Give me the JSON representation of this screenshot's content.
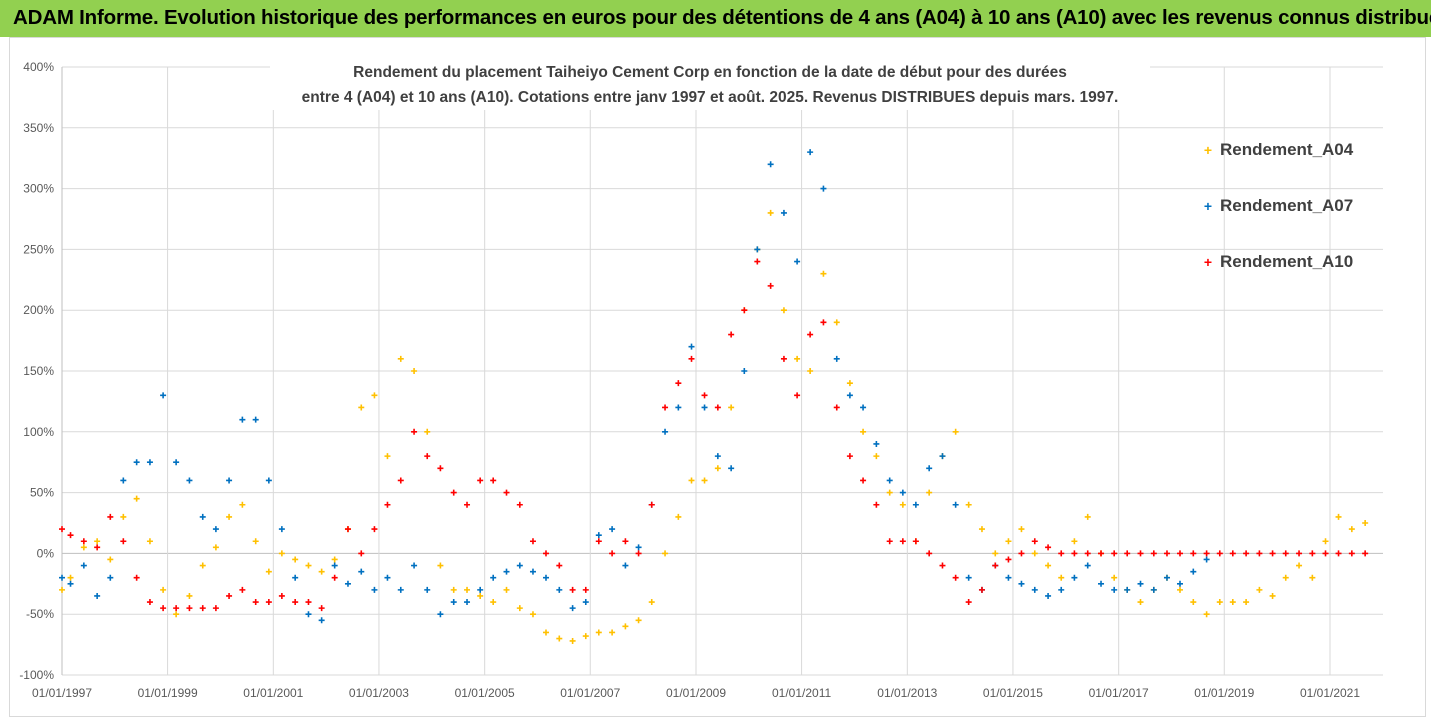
{
  "header": {
    "title": "ADAM Informe. Evolution historique des performances en euros pour des détentions de 4 ans (A04) à 10 ans (A10) avec les revenus connus distribués"
  },
  "chart_data": {
    "type": "scatter",
    "title_lines": [
      "Rendement du placement Taiheiyo Cement Corp en fonction de la date de début pour des durées",
      "entre 4 (A04) et 10 ans (A10). Cotations entre janv 1997 et août. 2025. Revenus DISTRIBUES depuis mars. 1997."
    ],
    "xlabel": "",
    "ylabel": "",
    "x_ticks": [
      "01/01/1997",
      "01/01/1999",
      "01/01/2001",
      "01/01/2003",
      "01/01/2005",
      "01/01/2007",
      "01/01/2009",
      "01/01/2011",
      "01/01/2013",
      "01/01/2015",
      "01/01/2017",
      "01/01/2019",
      "01/01/2021"
    ],
    "y_ticks": [
      "-100%",
      "-50%",
      "0%",
      "50%",
      "100%",
      "150%",
      "200%",
      "250%",
      "300%",
      "350%",
      "400%"
    ],
    "xlim": [
      "1997-01-01",
      "2021-09-15"
    ],
    "ylim": [
      -100,
      400
    ],
    "grid": true,
    "marker": "+",
    "legend_position": "right",
    "colors": {
      "Rendement_A04": "#ffc000",
      "Rendement_A07": "#0070c0",
      "Rendement_A10": "#ff0000"
    },
    "series": [
      {
        "name": "Rendement_A04",
        "x": [
          "1997-01-01",
          "1997-03-01",
          "1997-06-01",
          "1997-09-01",
          "1997-12-01",
          "1998-03-01",
          "1998-06-01",
          "1998-09-01",
          "1998-12-01",
          "1999-03-01",
          "1999-06-01",
          "1999-09-01",
          "1999-12-01",
          "2000-03-01",
          "2000-06-01",
          "2000-09-01",
          "2000-12-01",
          "2001-03-01",
          "2001-06-01",
          "2001-09-01",
          "2001-12-01",
          "2002-03-01",
          "2002-06-01",
          "2002-09-01",
          "2002-12-01",
          "2003-03-01",
          "2003-06-01",
          "2003-09-01",
          "2003-12-01",
          "2004-03-01",
          "2004-06-01",
          "2004-09-01",
          "2004-12-01",
          "2005-03-01",
          "2005-06-01",
          "2005-09-01",
          "2005-12-01",
          "2006-03-01",
          "2006-06-01",
          "2006-09-01",
          "2006-12-01",
          "2007-03-01",
          "2007-06-01",
          "2007-09-01",
          "2007-12-01",
          "2008-03-01",
          "2008-06-01",
          "2008-09-01",
          "2008-12-01",
          "2009-03-01",
          "2009-06-01",
          "2009-09-01",
          "2009-12-01",
          "2010-03-01",
          "2010-06-01",
          "2010-09-01",
          "2010-12-01",
          "2011-03-01",
          "2011-06-01",
          "2011-09-01",
          "2011-12-01",
          "2012-03-01",
          "2012-06-01",
          "2012-09-01",
          "2012-12-01",
          "2013-03-01",
          "2013-06-01",
          "2013-09-01",
          "2013-12-01",
          "2014-03-01",
          "2014-06-01",
          "2014-09-01",
          "2014-12-01",
          "2015-03-01",
          "2015-06-01",
          "2015-09-01",
          "2015-12-01",
          "2016-03-01",
          "2016-06-01",
          "2016-09-01",
          "2016-12-01",
          "2017-03-01",
          "2017-06-01",
          "2017-09-01",
          "2017-12-01",
          "2018-03-01",
          "2018-06-01",
          "2018-09-01",
          "2018-12-01",
          "2019-03-01",
          "2019-06-01",
          "2019-09-01",
          "2019-12-01",
          "2020-03-01",
          "2020-06-01",
          "2020-09-01",
          "2020-12-01",
          "2021-03-01",
          "2021-06-01",
          "2021-09-01"
        ],
        "y": [
          -30,
          -20,
          5,
          10,
          -5,
          30,
          45,
          10,
          -30,
          -50,
          -35,
          -10,
          5,
          30,
          40,
          10,
          -15,
          0,
          -5,
          -10,
          -15,
          -5,
          20,
          120,
          130,
          80,
          160,
          150,
          100,
          -10,
          -30,
          -30,
          -35,
          -40,
          -30,
          -45,
          -50,
          -65,
          -70,
          -72,
          -68,
          -65,
          -65,
          -60,
          -55,
          -40,
          0,
          30,
          60,
          60,
          70,
          120,
          200,
          250,
          280,
          200,
          160,
          150,
          230,
          190,
          140,
          100,
          80,
          50,
          40,
          10,
          50,
          80,
          100,
          40,
          20,
          0,
          10,
          20,
          0,
          -10,
          -20,
          10,
          30,
          0,
          -20,
          -30,
          -40,
          -30,
          -20,
          -30,
          -40,
          -50,
          -40,
          -40,
          -40,
          -30,
          -35,
          -20,
          -10,
          -20,
          10,
          30,
          20,
          25
        ]
      },
      {
        "name": "Rendement_A07",
        "x": [
          "1997-01-01",
          "1997-03-01",
          "1997-06-01",
          "1997-09-01",
          "1997-12-01",
          "1998-03-01",
          "1998-06-01",
          "1998-09-01",
          "1998-12-01",
          "1999-03-01",
          "1999-06-01",
          "1999-09-01",
          "1999-12-01",
          "2000-03-01",
          "2000-06-01",
          "2000-09-01",
          "2000-12-01",
          "2001-03-01",
          "2001-06-01",
          "2001-09-01",
          "2001-12-01",
          "2002-03-01",
          "2002-06-01",
          "2002-09-01",
          "2002-12-01",
          "2003-03-01",
          "2003-06-01",
          "2003-09-01",
          "2003-12-01",
          "2004-03-01",
          "2004-06-01",
          "2004-09-01",
          "2004-12-01",
          "2005-03-01",
          "2005-06-01",
          "2005-09-01",
          "2005-12-01",
          "2006-03-01",
          "2006-06-01",
          "2006-09-01",
          "2006-12-01",
          "2007-03-01",
          "2007-06-01",
          "2007-09-01",
          "2007-12-01",
          "2008-03-01",
          "2008-06-01",
          "2008-09-01",
          "2008-12-01",
          "2009-03-01",
          "2009-06-01",
          "2009-09-01",
          "2009-12-01",
          "2010-03-01",
          "2010-06-01",
          "2010-09-01",
          "2010-12-01",
          "2011-03-01",
          "2011-06-01",
          "2011-09-01",
          "2011-12-01",
          "2012-03-01",
          "2012-06-01",
          "2012-09-01",
          "2012-12-01",
          "2013-03-01",
          "2013-06-01",
          "2013-09-01",
          "2013-12-01",
          "2014-03-01",
          "2014-06-01",
          "2014-09-01",
          "2014-12-01",
          "2015-03-01",
          "2015-06-01",
          "2015-09-01",
          "2015-12-01",
          "2016-03-01",
          "2016-06-01",
          "2016-09-01",
          "2016-12-01",
          "2017-03-01",
          "2017-06-01",
          "2017-09-01",
          "2017-12-01",
          "2018-03-01",
          "2018-06-01",
          "2018-09-01"
        ],
        "y": [
          -20,
          -25,
          -10,
          -35,
          -20,
          60,
          75,
          75,
          130,
          75,
          60,
          30,
          20,
          60,
          110,
          110,
          60,
          20,
          -20,
          -50,
          -55,
          -10,
          -25,
          -15,
          -30,
          -20,
          -30,
          -10,
          -30,
          -50,
          -40,
          -40,
          -30,
          -20,
          -15,
          -10,
          -15,
          -20,
          -30,
          -45,
          -40,
          15,
          20,
          -10,
          5,
          40,
          100,
          120,
          170,
          120,
          80,
          70,
          150,
          250,
          320,
          280,
          240,
          330,
          300,
          160,
          130,
          120,
          90,
          60,
          50,
          40,
          70,
          80,
          40,
          -20,
          -30,
          -10,
          -20,
          -25,
          -30,
          -35,
          -30,
          -20,
          -10,
          -25,
          -30,
          -30,
          -25,
          -30,
          -20,
          -25,
          -15,
          -5
        ]
      },
      {
        "name": "Rendement_A10",
        "x": [
          "1997-01-01",
          "1997-03-01",
          "1997-06-01",
          "1997-09-01",
          "1997-12-01",
          "1998-03-01",
          "1998-06-01",
          "1998-09-01",
          "1998-12-01",
          "1999-03-01",
          "1999-06-01",
          "1999-09-01",
          "1999-12-01",
          "2000-03-01",
          "2000-06-01",
          "2000-09-01",
          "2000-12-01",
          "2001-03-01",
          "2001-06-01",
          "2001-09-01",
          "2001-12-01",
          "2002-03-01",
          "2002-06-01",
          "2002-09-01",
          "2002-12-01",
          "2003-03-01",
          "2003-06-01",
          "2003-09-01",
          "2003-12-01",
          "2004-03-01",
          "2004-06-01",
          "2004-09-01",
          "2004-12-01",
          "2005-03-01",
          "2005-06-01",
          "2005-09-01",
          "2005-12-01",
          "2006-03-01",
          "2006-06-01",
          "2006-09-01",
          "2006-12-01",
          "2007-03-01",
          "2007-06-01",
          "2007-09-01",
          "2007-12-01",
          "2008-03-01",
          "2008-06-01",
          "2008-09-01",
          "2008-12-01",
          "2009-03-01",
          "2009-06-01",
          "2009-09-01",
          "2009-12-01",
          "2010-03-01",
          "2010-06-01",
          "2010-09-01",
          "2010-12-01",
          "2011-03-01",
          "2011-06-01",
          "2011-09-01",
          "2011-12-01",
          "2012-03-01",
          "2012-06-01",
          "2012-09-01",
          "2012-12-01",
          "2013-03-01",
          "2013-06-01",
          "2013-09-01",
          "2013-12-01",
          "2014-03-01",
          "2014-06-01",
          "2014-09-01",
          "2014-12-01",
          "2015-03-01",
          "2015-06-01",
          "2015-09-01",
          "2015-12-01",
          "2016-03-01",
          "2016-06-01",
          "2016-09-01",
          "2016-12-01",
          "2017-03-01",
          "2017-06-01",
          "2017-09-01",
          "2017-12-01",
          "2018-03-01",
          "2018-06-01",
          "2018-09-01",
          "2018-12-01",
          "2019-03-01",
          "2019-06-01",
          "2019-09-01",
          "2019-12-01",
          "2020-03-01",
          "2020-06-01",
          "2020-09-01",
          "2020-12-01",
          "2021-03-01",
          "2021-06-01",
          "2021-09-01"
        ],
        "y": [
          20,
          15,
          10,
          5,
          30,
          10,
          -20,
          -40,
          -45,
          -45,
          -45,
          -45,
          -45,
          -35,
          -30,
          -40,
          -40,
          -35,
          -40,
          -40,
          -45,
          -20,
          20,
          0,
          20,
          40,
          60,
          100,
          80,
          70,
          50,
          40,
          60,
          60,
          50,
          40,
          10,
          0,
          -10,
          -30,
          -30,
          10,
          0,
          10,
          0,
          40,
          120,
          140,
          160,
          130,
          120,
          180,
          200,
          240,
          220,
          160,
          130,
          180,
          190,
          120,
          80,
          60,
          40,
          10,
          10,
          10,
          0,
          -10,
          -20,
          -40,
          -30,
          -10,
          -5,
          0,
          10,
          5,
          0,
          0,
          0,
          0,
          0,
          0,
          0,
          0,
          0,
          0,
          0,
          0,
          0,
          0,
          0,
          0,
          0,
          0,
          0,
          0,
          0,
          0,
          0,
          0
        ]
      }
    ]
  }
}
